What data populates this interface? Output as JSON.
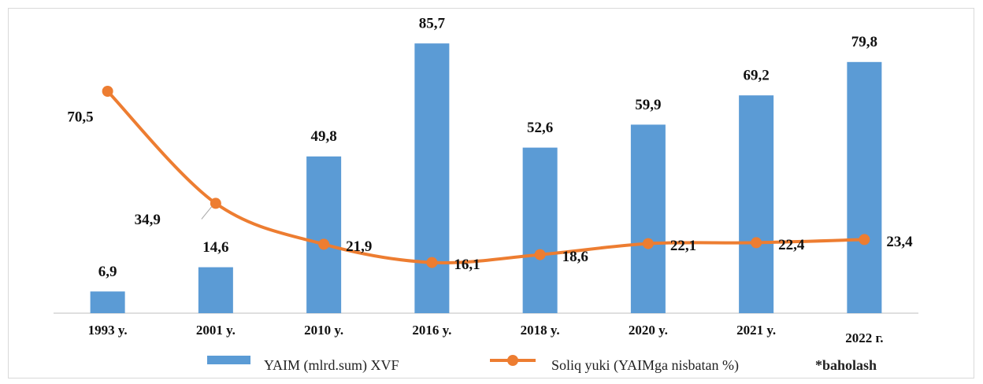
{
  "chart_data": {
    "type": "bar_line",
    "categories": [
      "1993 y.",
      "2001 y.",
      "2010 y.",
      "2016 y.",
      "2018 y.",
      "2020 y.",
      "2021 y.",
      "2022 г."
    ],
    "series": [
      {
        "name": "YAIM (mlrd.sum) XVF",
        "type": "bar",
        "color": "#5b9bd5",
        "values": [
          6.9,
          14.6,
          49.8,
          85.7,
          52.6,
          59.9,
          69.2,
          79.8
        ],
        "value_labels": [
          "6,9",
          "14,6",
          "49,8",
          "85,7",
          "52,6",
          "59,9",
          "69,2",
          "79,8"
        ]
      },
      {
        "name": "Soliq yuki (YAIMga nisbatan %)",
        "type": "line",
        "color": "#ed7d31",
        "values": [
          70.5,
          34.9,
          21.9,
          16.1,
          18.6,
          22.1,
          22.4,
          23.4
        ],
        "value_labels": [
          "70,5",
          "34,9",
          "21,9",
          "16,1",
          "18,6",
          "22,1",
          "22,4",
          "23,4"
        ]
      }
    ],
    "annotation": "*baholash",
    "ylim": [
      0,
      90
    ]
  }
}
